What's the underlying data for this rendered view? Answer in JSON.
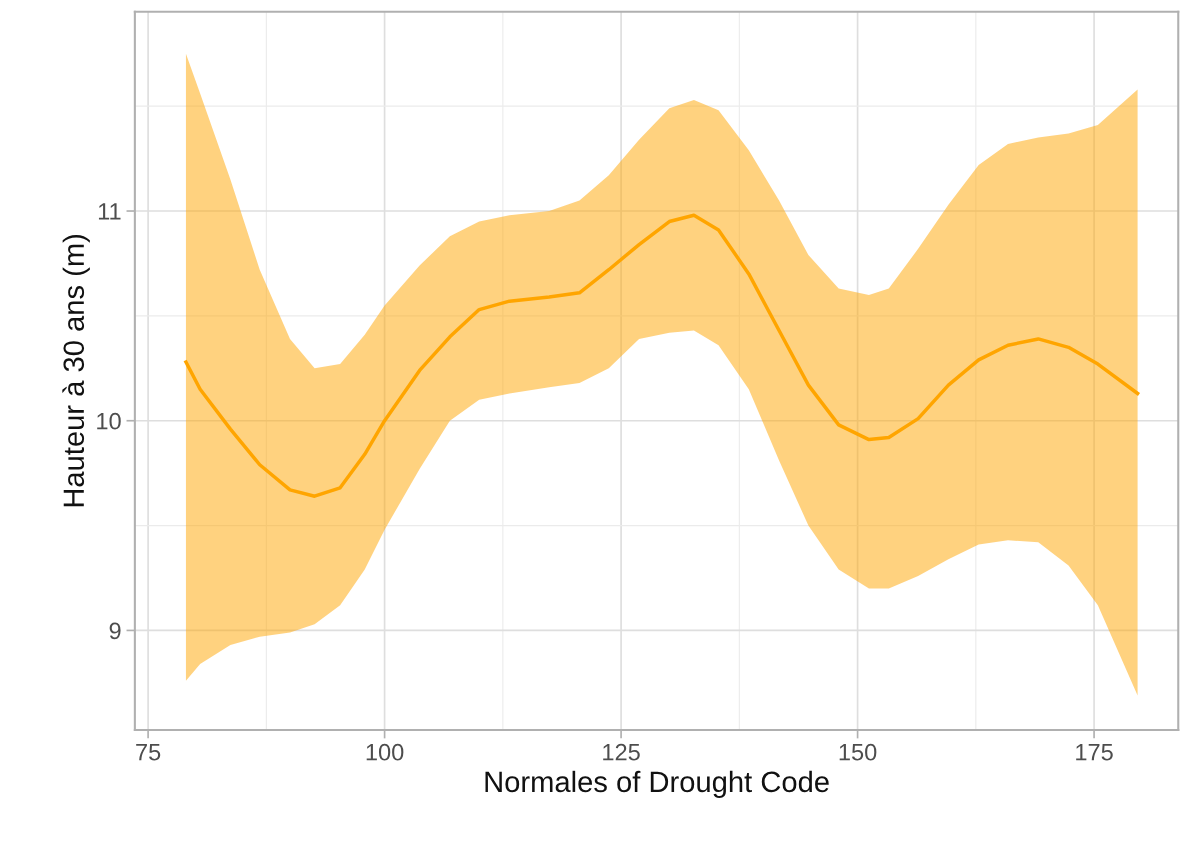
{
  "chart_data": {
    "type": "line",
    "xlabel": "Normales of Drought Code",
    "ylabel": "Hauteur à 30 ans (m)",
    "xlim": [
      73.6,
      183.9
    ],
    "ylim": [
      8.525,
      11.95
    ],
    "xticks": [
      75,
      100,
      125,
      150,
      175
    ],
    "yticks": [
      9,
      10,
      11
    ],
    "grid": true,
    "legend": false,
    "marker": "none",
    "line_style": "solid",
    "x": [
      79,
      80.5,
      83.7,
      86.8,
      90.0,
      92.6,
      95.3,
      97.9,
      100,
      103.7,
      106.9,
      110,
      113.2,
      117.4,
      120.6,
      123.7,
      126.9,
      130.1,
      132.7,
      135.3,
      138.5,
      141.7,
      144.8,
      148,
      151.2,
      153.3,
      156.4,
      159.6,
      162.8,
      165.9,
      169.1,
      172.3,
      175.4,
      179.6
    ],
    "series": [
      {
        "color": "#ffa500",
        "values": [
          10.28,
          10.15,
          9.96,
          9.79,
          9.67,
          9.64,
          9.68,
          9.84,
          10.0,
          10.24,
          10.4,
          10.53,
          10.57,
          10.59,
          10.61,
          10.72,
          10.84,
          10.95,
          10.98,
          10.91,
          10.7,
          10.43,
          10.17,
          9.98,
          9.91,
          9.92,
          10.01,
          10.17,
          10.29,
          10.36,
          10.39,
          10.35,
          10.27,
          10.13
        ],
        "upper": [
          11.75,
          11.56,
          11.15,
          10.72,
          10.39,
          10.25,
          10.27,
          10.41,
          10.55,
          10.74,
          10.88,
          10.95,
          10.98,
          11.0,
          11.05,
          11.17,
          11.34,
          11.49,
          11.53,
          11.48,
          11.29,
          11.05,
          10.79,
          10.63,
          10.6,
          10.63,
          10.82,
          11.03,
          11.22,
          11.32,
          11.35,
          11.37,
          11.41,
          11.58
        ],
        "lower": [
          8.76,
          8.84,
          8.93,
          8.97,
          8.99,
          9.03,
          9.12,
          9.29,
          9.48,
          9.77,
          10.0,
          10.1,
          10.13,
          10.16,
          10.18,
          10.25,
          10.39,
          10.42,
          10.43,
          10.36,
          10.15,
          9.81,
          9.5,
          9.29,
          9.2,
          9.2,
          9.26,
          9.34,
          9.41,
          9.43,
          9.42,
          9.31,
          9.12,
          8.69
        ]
      }
    ]
  }
}
